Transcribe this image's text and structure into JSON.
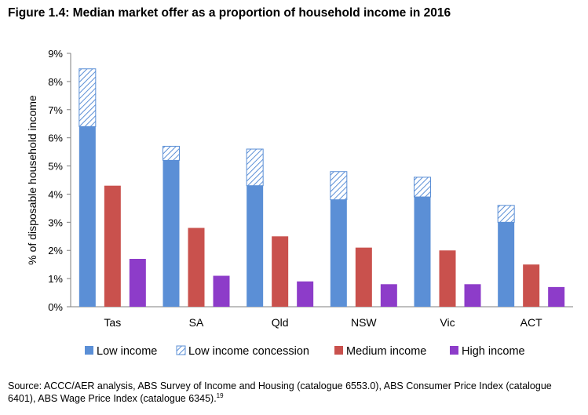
{
  "title": "Figure 1.4: Median market offer as a proportion of household income in 2016",
  "source": {
    "text": "Source: ACCC/AER analysis, ABS Survey of Income and Housing (catalogue 6553.0), ABS Consumer Price Index (catalogue 6401), ABS Wage Price Index (catalogue 6345).",
    "footnote": "19"
  },
  "colors": {
    "low": "#5b8fd6",
    "concession_stripe": "#5b8fd6",
    "medium": "#c9514d",
    "high": "#8d3cc9",
    "axis": "#7f7f7f",
    "grid": "#d9d9d9"
  },
  "chart_data": {
    "type": "bar",
    "ylabel": "% of disposable household income",
    "xlabel": "",
    "ylim": [
      0,
      9
    ],
    "yticks": [
      "0%",
      "1%",
      "2%",
      "3%",
      "4%",
      "5%",
      "6%",
      "7%",
      "8%",
      "9%"
    ],
    "grid": false,
    "legend_position": "bottom",
    "categories": [
      "Tas",
      "SA",
      "Qld",
      "NSW",
      "Vic",
      "ACT"
    ],
    "series": [
      {
        "name": "Low income",
        "key": "low",
        "values": [
          6.4,
          5.2,
          4.3,
          3.8,
          3.9,
          3.0
        ]
      },
      {
        "name": "Low income concession",
        "key": "concession",
        "values": [
          8.45,
          5.7,
          5.6,
          4.8,
          4.6,
          3.6
        ]
      },
      {
        "name": "Medium income",
        "key": "medium",
        "values": [
          4.3,
          2.8,
          2.5,
          2.1,
          2.0,
          1.5
        ]
      },
      {
        "name": "High income",
        "key": "high",
        "values": [
          1.7,
          1.1,
          0.9,
          0.8,
          0.8,
          0.7
        ]
      }
    ]
  }
}
